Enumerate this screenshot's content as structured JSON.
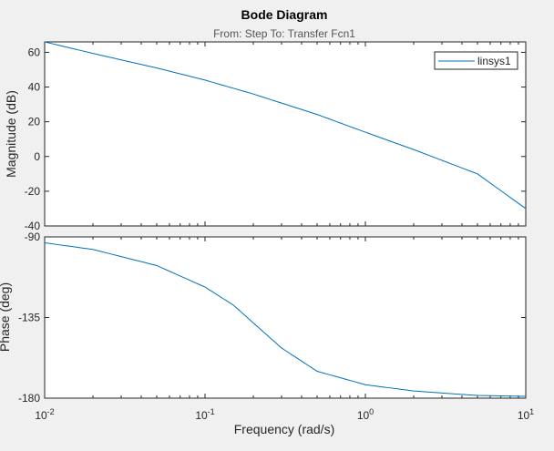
{
  "chart_data": {
    "type": "line",
    "title": "Bode Diagram",
    "subtitle": "From: Step  To: Transfer Fcn1",
    "xlabel": "Frequency  (rad/s)",
    "xscale": "log",
    "xlim": [
      0.01,
      10
    ],
    "x_ticks": [
      {
        "value": 0.01,
        "base": "10",
        "exp": "-2"
      },
      {
        "value": 0.1,
        "base": "10",
        "exp": "-1"
      },
      {
        "value": 1,
        "base": "10",
        "exp": "0"
      },
      {
        "value": 10,
        "base": "10",
        "exp": "1"
      }
    ],
    "legend": {
      "entries": [
        "linsys1"
      ],
      "placement": "top-right"
    },
    "line_color": "#0072bd",
    "grid": false,
    "magnitude": {
      "ylabel": "Magnitude (dB)",
      "ylim": [
        -40,
        66
      ],
      "y_ticks": [
        -40,
        -20,
        0,
        20,
        40,
        60
      ],
      "x": [
        0.01,
        0.02,
        0.05,
        0.1,
        0.2,
        0.5,
        1,
        2,
        5,
        10
      ],
      "y": [
        66,
        59.4,
        51,
        44,
        36,
        24.2,
        14,
        4,
        -10,
        -30
      ]
    },
    "phase": {
      "ylabel": "Phase (deg)",
      "ylim": [
        -180,
        -90
      ],
      "y_ticks": [
        -180,
        -135,
        -90
      ],
      "x": [
        0.01,
        0.02,
        0.05,
        0.1,
        0.15,
        0.2,
        0.3,
        0.5,
        1,
        2,
        5,
        10
      ],
      "y": [
        -93.3,
        -97,
        -106,
        -118,
        -128,
        -138,
        -152,
        -165,
        -172.5,
        -176,
        -178.5,
        -179
      ]
    }
  }
}
